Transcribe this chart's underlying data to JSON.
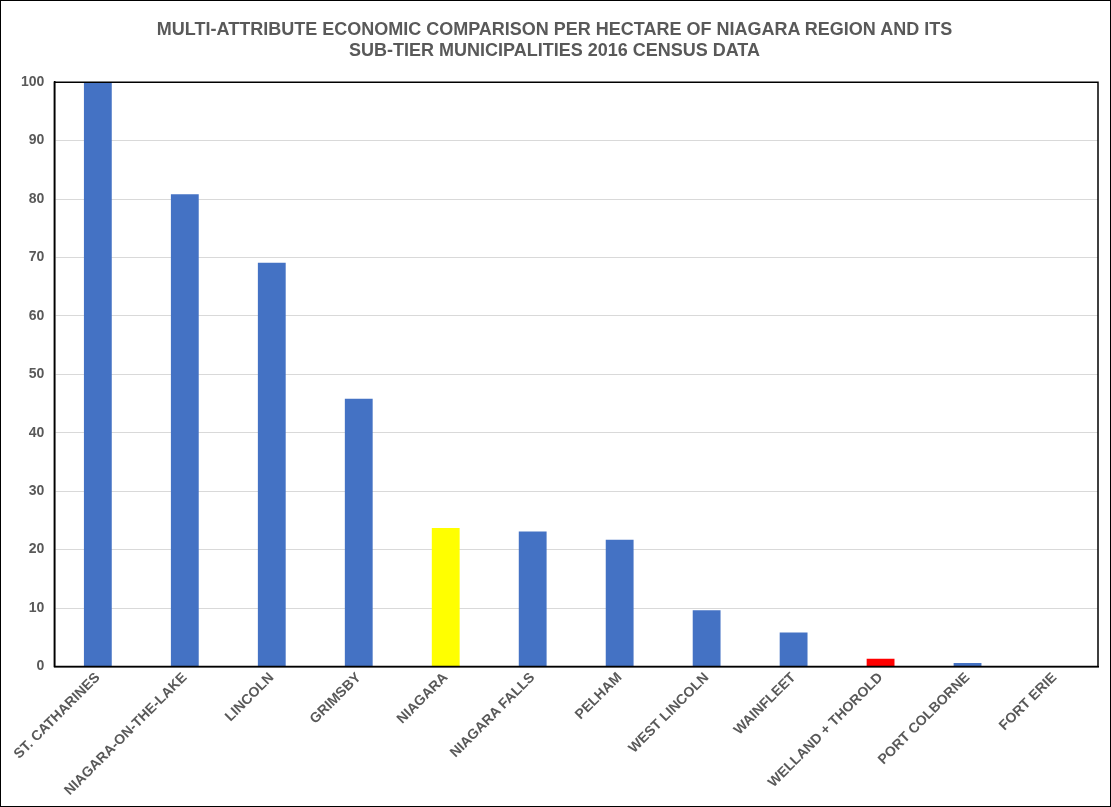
{
  "chart_data": {
    "type": "bar",
    "title": "MULTI-ATTRIBUTE ECONOMIC COMPARISON PER HECTARE OF NIAGARA REGION AND ITS\nSUB-TIER MUNICIPALITIES 2016 CENSUS DATA",
    "categories": [
      "ST. CATHARINES",
      "NIAGARA-ON-THE-LAKE",
      "LINCOLN",
      "GRIMSBY",
      "NIAGARA",
      "NIAGARA FALLS",
      "PELHAM",
      "WEST LINCOLN",
      "WAINFLEET",
      "WELLAND + THOROLD",
      "PORT COLBORNE",
      "FORT ERIE"
    ],
    "values": [
      100,
      80.8,
      69.1,
      45.8,
      23.7,
      23.1,
      21.7,
      9.6,
      5.8,
      1.3,
      0.6,
      0
    ],
    "colors": [
      "#4472c4",
      "#4472c4",
      "#4472c4",
      "#4472c4",
      "#ffff00",
      "#4472c4",
      "#4472c4",
      "#4472c4",
      "#4472c4",
      "#ff0000",
      "#4472c4",
      "#4472c4"
    ],
    "ylim": [
      0,
      100
    ],
    "yticks": [
      0,
      10,
      20,
      30,
      40,
      50,
      60,
      70,
      80,
      90,
      100
    ],
    "grid": "y",
    "legend": false
  }
}
